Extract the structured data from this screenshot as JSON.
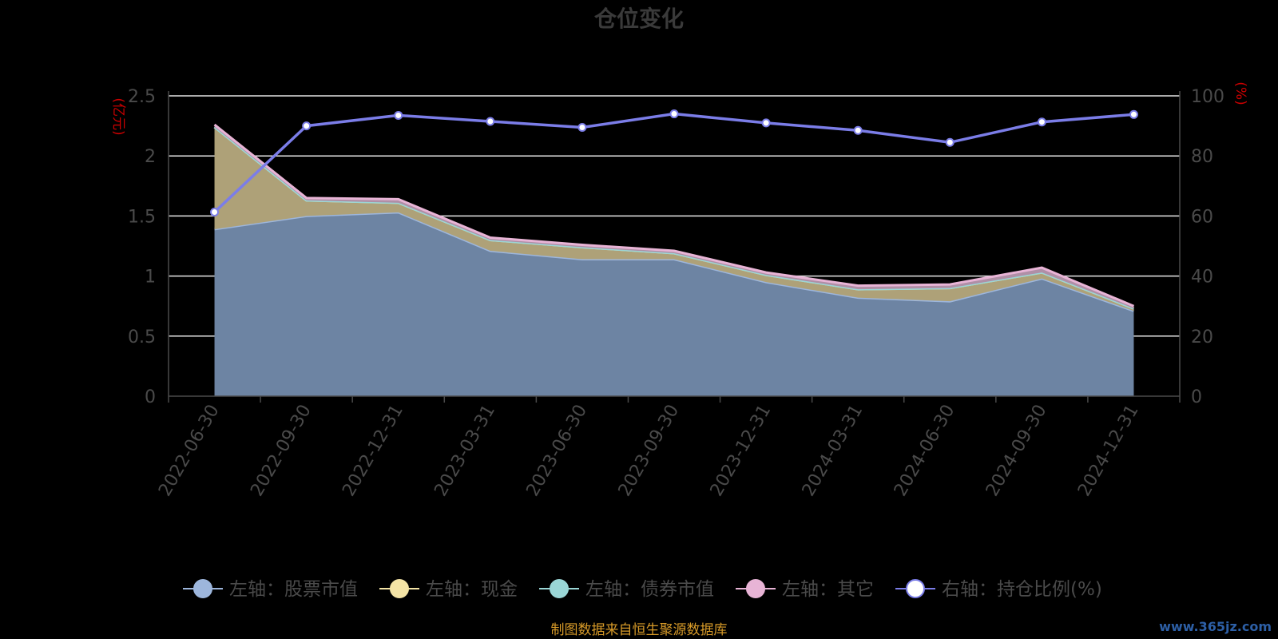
{
  "chart_data": {
    "type": "area",
    "title": "仓位变化",
    "left_unit": "(亿元)",
    "right_unit": "(%)",
    "categories": [
      "2022-06-30",
      "2022-09-30",
      "2022-12-31",
      "2023-03-31",
      "2023-06-30",
      "2023-09-30",
      "2023-12-31",
      "2024-03-31",
      "2024-06-30",
      "2024-09-30",
      "2024-12-31"
    ],
    "left_axis": {
      "min": 0,
      "max": 2.5,
      "ticks": [
        "0",
        "0.5",
        "1",
        "1.5",
        "2",
        "2.5"
      ]
    },
    "right_axis": {
      "min": 0,
      "max": 100,
      "ticks": [
        "0",
        "20",
        "40",
        "60",
        "80",
        "100"
      ]
    },
    "series": [
      {
        "name": "左轴：股票市值",
        "axis": "left",
        "color": "#9db6dc",
        "fill": "#6d84a3",
        "values": [
          1.39,
          1.5,
          1.53,
          1.21,
          1.14,
          1.14,
          0.95,
          0.82,
          0.79,
          0.98,
          0.71
        ]
      },
      {
        "name": "左轴：现金",
        "axis": "left",
        "color": "#f4e4a6",
        "fill": "#aea178",
        "values": [
          0.85,
          0.13,
          0.08,
          0.09,
          0.1,
          0.05,
          0.06,
          0.07,
          0.11,
          0.05,
          0.02
        ]
      },
      {
        "name": "左轴：债券市值",
        "axis": "left",
        "color": "#9ad6d6",
        "fill": "#7ea9a8",
        "values": [
          0,
          0,
          0,
          0,
          0,
          0,
          0,
          0,
          0,
          0,
          0
        ]
      },
      {
        "name": "左轴：其它",
        "axis": "left",
        "color": "#e8b4d6",
        "fill": "#b08fa6",
        "values": [
          0.02,
          0.02,
          0.03,
          0.02,
          0.02,
          0.02,
          0.02,
          0.03,
          0.03,
          0.04,
          0.02
        ]
      },
      {
        "name": "右轴：持仓比例(%)",
        "axis": "right",
        "color": "#7b7de8",
        "values": [
          61.3,
          90.0,
          93.5,
          91.5,
          89.5,
          94.0,
          91.0,
          88.5,
          84.5,
          91.3,
          93.8
        ]
      }
    ],
    "grid": true
  },
  "footer": {
    "source": "制图数据来自恒生聚源数据库",
    "watermark": "www.365jz.com"
  }
}
